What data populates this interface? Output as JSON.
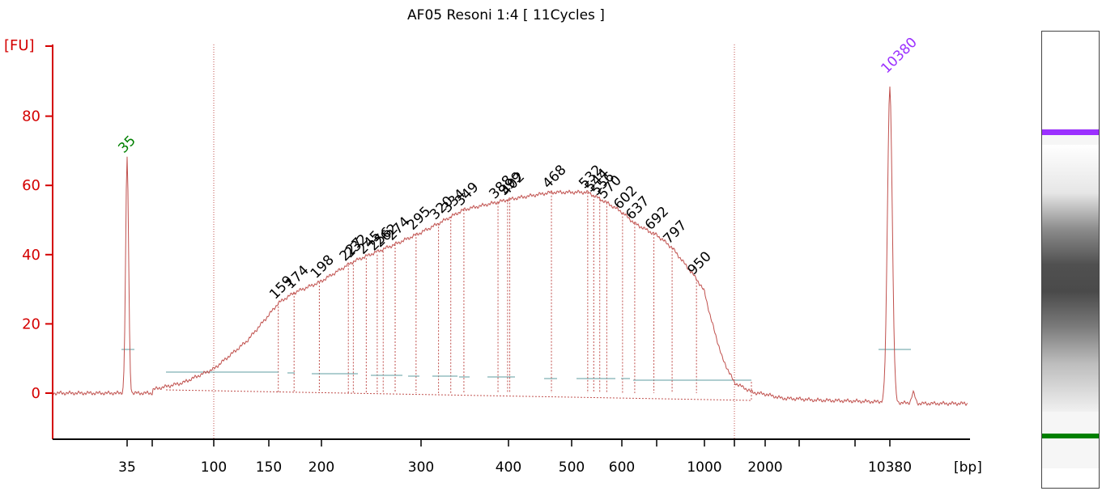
{
  "chart_data": {
    "type": "line",
    "title": "AF05 Resoni 1:4  [ 11Cycles ]",
    "ylabel": "[FU]",
    "xlabel": "[bp]",
    "ylim": [
      -13,
      102
    ],
    "yticks": [
      0,
      20,
      40,
      60,
      80
    ],
    "x_axis_scale": "sizing ladder (non-linear)",
    "xticks": [
      "35",
      "100",
      "150",
      "200",
      "300",
      "400",
      "500",
      "600",
      "1000",
      "2000",
      "10380"
    ],
    "lower_marker": {
      "label": "35",
      "value": 68,
      "color": "#008000"
    },
    "upper_marker": {
      "label": "10380",
      "value": 91,
      "color": "#9b30ff"
    },
    "peaks": [
      {
        "label": "159",
        "value": 26
      },
      {
        "label": "174",
        "value": 29
      },
      {
        "label": "198",
        "value": 32
      },
      {
        "label": "227",
        "value": 37
      },
      {
        "label": "232",
        "value": 38
      },
      {
        "label": "245",
        "value": 39
      },
      {
        "label": "256",
        "value": 40
      },
      {
        "label": "262",
        "value": 41
      },
      {
        "label": "274",
        "value": 43
      },
      {
        "label": "295",
        "value": 46
      },
      {
        "label": "320",
        "value": 49
      },
      {
        "label": "334",
        "value": 51
      },
      {
        "label": "349",
        "value": 53
      },
      {
        "label": "388",
        "value": 55
      },
      {
        "label": "399",
        "value": 56
      },
      {
        "label": "402",
        "value": 56
      },
      {
        "label": "468",
        "value": 58
      },
      {
        "label": "532",
        "value": 58
      },
      {
        "label": "544",
        "value": 57
      },
      {
        "label": "556",
        "value": 56
      },
      {
        "label": "570",
        "value": 55
      },
      {
        "label": "602",
        "value": 52
      },
      {
        "label": "637",
        "value": 49
      },
      {
        "label": "692",
        "value": 46
      },
      {
        "label": "797",
        "value": 42
      },
      {
        "label": "950",
        "value": 33
      }
    ],
    "grid": false,
    "legend": "none"
  },
  "colors": {
    "axis": "#d40000",
    "trace": "#c0504d",
    "baseline": "#5f9ea0",
    "marker_lower": "#008000",
    "marker_upper": "#9b30ff"
  }
}
